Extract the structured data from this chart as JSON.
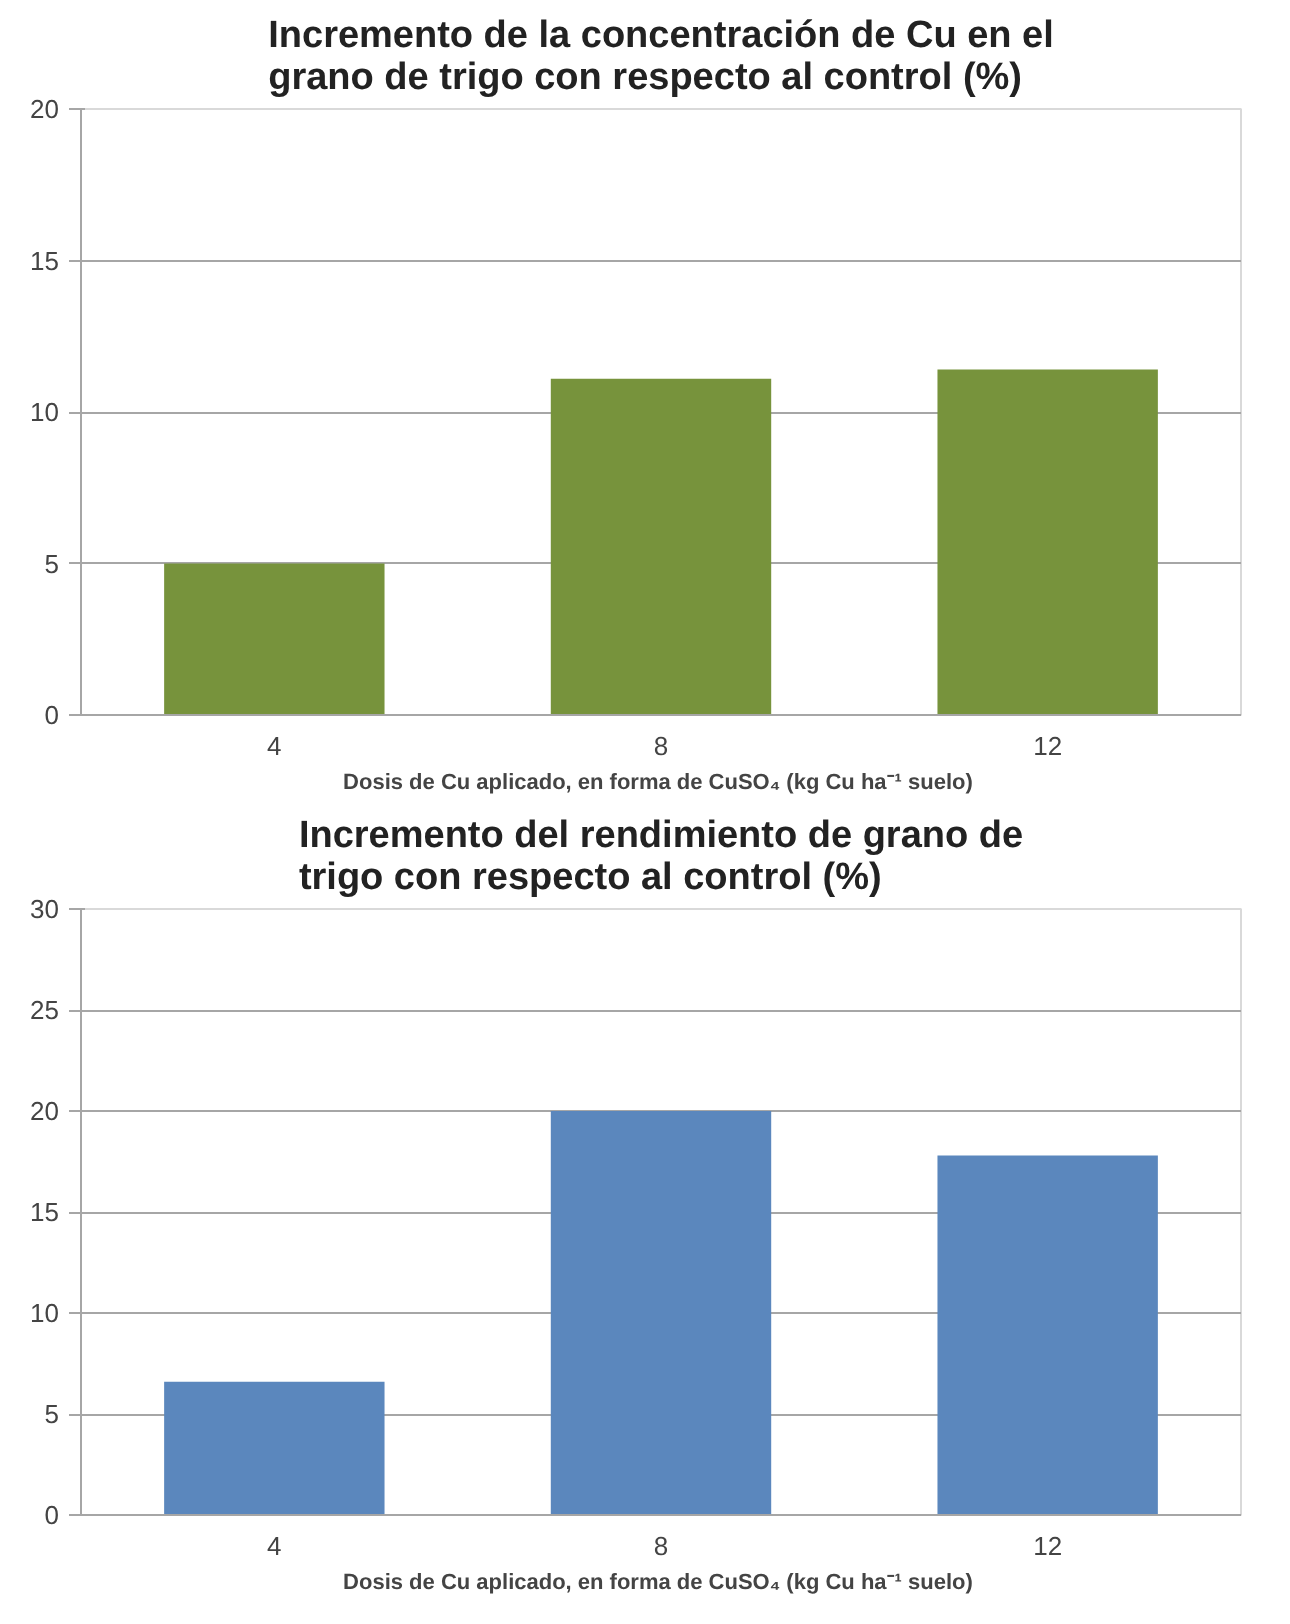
{
  "chart_data": [
    {
      "type": "bar",
      "title": "Incremento de la concentración de Cu en el grano de trigo con respecto al control (%)",
      "xlabel": "Dosis de Cu aplicado,  en forma de CuSO₄ (kg Cu ha⁻¹ suelo)",
      "categories": [
        "4",
        "8",
        "12"
      ],
      "values": [
        5.0,
        11.1,
        11.4
      ],
      "color": "#77933c",
      "ylim": [
        0,
        20
      ],
      "yticks": [
        0,
        5,
        10,
        15,
        20
      ],
      "grid": "y"
    },
    {
      "type": "bar",
      "title": "Incremento del rendimiento de grano de trigo con respecto al control (%)",
      "xlabel": "Dosis de Cu aplicado,  en forma de CuSO₄ (kg Cu ha⁻¹ suelo)",
      "categories": [
        "4",
        "8",
        "12"
      ],
      "values": [
        6.6,
        20.0,
        17.8
      ],
      "color": "#5b87bd",
      "ylim": [
        0,
        30
      ],
      "yticks": [
        0,
        5,
        10,
        15,
        20,
        25,
        30
      ],
      "grid": "y"
    }
  ]
}
